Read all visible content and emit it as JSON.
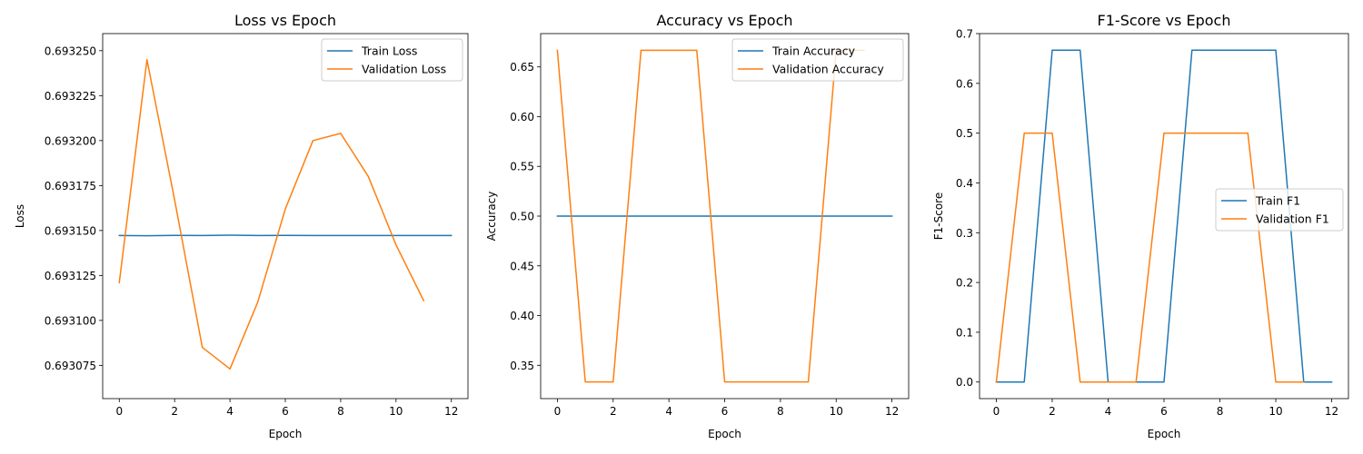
{
  "chart_data": [
    {
      "type": "line",
      "title": "Loss vs Epoch",
      "xlabel": "Epoch",
      "ylabel": "Loss",
      "xlim": [
        -0.6,
        12.6
      ],
      "ylim": [
        0.6930565,
        0.6932595
      ],
      "xticks": [
        0,
        2,
        4,
        6,
        8,
        10,
        12
      ],
      "yticks": [
        0.693075,
        0.6931,
        0.693125,
        0.69315,
        0.693175,
        0.6932,
        0.693225,
        0.69325
      ],
      "ytick_labels": [
        "0.693075",
        "0.693100",
        "0.693125",
        "0.693150",
        "0.693175",
        "0.693200",
        "0.693225",
        "0.693250"
      ],
      "xtick_labels": [
        "0",
        "2",
        "4",
        "6",
        "8",
        "10",
        "12"
      ],
      "legend_position": "top-right",
      "series": [
        {
          "name": "Train Loss",
          "color": "#1f77b4",
          "x": [
            0,
            1,
            2,
            3,
            4,
            5,
            6,
            7,
            8,
            9,
            10,
            11,
            12
          ],
          "values": [
            0.6931472,
            0.6931471,
            0.6931473,
            0.6931472,
            0.6931474,
            0.6931472,
            0.6931473,
            0.6931472,
            0.6931472,
            0.6931472,
            0.6931472,
            0.6931472,
            0.6931472
          ]
        },
        {
          "name": "Validation Loss",
          "color": "#ff7f0e",
          "x": [
            0,
            1,
            2,
            3,
            4,
            5,
            6,
            7,
            8,
            9,
            10,
            11
          ],
          "values": [
            0.693121,
            0.693245,
            0.693167,
            0.693085,
            0.693073,
            0.69311,
            0.693162,
            0.6932,
            0.693204,
            0.69318,
            0.693142,
            0.693111
          ]
        }
      ]
    },
    {
      "type": "line",
      "title": "Accuracy vs Epoch",
      "xlabel": "Epoch",
      "ylabel": "Accuracy",
      "xlim": [
        -0.6,
        12.6
      ],
      "ylim": [
        0.3165,
        0.6835
      ],
      "xticks": [
        0,
        2,
        4,
        6,
        8,
        10,
        12
      ],
      "yticks": [
        0.35,
        0.4,
        0.45,
        0.5,
        0.55,
        0.6,
        0.65
      ],
      "ytick_labels": [
        "0.35",
        "0.40",
        "0.45",
        "0.50",
        "0.55",
        "0.60",
        "0.65"
      ],
      "xtick_labels": [
        "0",
        "2",
        "4",
        "6",
        "8",
        "10",
        "12"
      ],
      "legend_position": "top-right",
      "series": [
        {
          "name": "Train Accuracy",
          "color": "#1f77b4",
          "x": [
            0,
            1,
            2,
            3,
            4,
            5,
            6,
            7,
            8,
            9,
            10,
            11,
            12
          ],
          "values": [
            0.5,
            0.5,
            0.5,
            0.5,
            0.5,
            0.5,
            0.5,
            0.5,
            0.5,
            0.5,
            0.5,
            0.5,
            0.5
          ]
        },
        {
          "name": "Validation Accuracy",
          "color": "#ff7f0e",
          "x": [
            0,
            1,
            2,
            3,
            4,
            5,
            6,
            7,
            8,
            9,
            10,
            11
          ],
          "values": [
            0.6667,
            0.3333,
            0.3333,
            0.6667,
            0.6667,
            0.6667,
            0.3333,
            0.3333,
            0.3333,
            0.3333,
            0.6667,
            0.6667
          ]
        }
      ]
    },
    {
      "type": "line",
      "title": "F1-Score vs Epoch",
      "xlabel": "Epoch",
      "ylabel": "F1-Score",
      "xlim": [
        -0.6,
        12.6
      ],
      "ylim": [
        -0.0333,
        0.7
      ],
      "xticks": [
        0,
        2,
        4,
        6,
        8,
        10,
        12
      ],
      "yticks": [
        0.0,
        0.1,
        0.2,
        0.3,
        0.4,
        0.5,
        0.6,
        0.7
      ],
      "ytick_labels": [
        "0.0",
        "0.1",
        "0.2",
        "0.3",
        "0.4",
        "0.5",
        "0.6",
        "0.7"
      ],
      "xtick_labels": [
        "0",
        "2",
        "4",
        "6",
        "8",
        "10",
        "12"
      ],
      "legend_position": "center-right",
      "series": [
        {
          "name": "Train F1",
          "color": "#1f77b4",
          "x": [
            0,
            1,
            2,
            3,
            4,
            5,
            6,
            7,
            8,
            9,
            10,
            11,
            12
          ],
          "values": [
            0,
            0,
            0.6667,
            0.6667,
            0,
            0,
            0,
            0.6667,
            0.6667,
            0.6667,
            0.6667,
            0,
            0
          ]
        },
        {
          "name": "Validation F1",
          "color": "#ff7f0e",
          "x": [
            0,
            1,
            2,
            3,
            4,
            5,
            6,
            7,
            8,
            9,
            10,
            11
          ],
          "values": [
            0,
            0.5,
            0.5,
            0,
            0,
            0,
            0.5,
            0.5,
            0.5,
            0.5,
            0,
            0
          ]
        }
      ]
    }
  ]
}
